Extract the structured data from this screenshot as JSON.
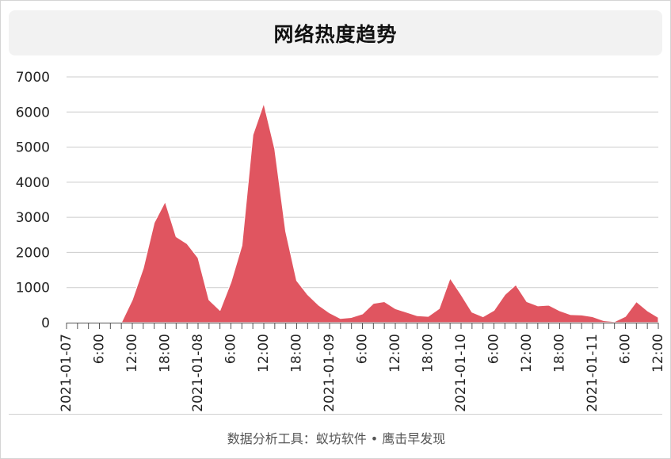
{
  "chart_data": {
    "type": "area",
    "title": "网络热度趋势",
    "x_tick_labels": [
      "2021-01-07",
      "6:00",
      "12:00",
      "18:00",
      "2021-01-08",
      "6:00",
      "12:00",
      "18:00",
      "2021-01-09",
      "6:00",
      "12:00",
      "18:00",
      "2021-01-10",
      "6:00",
      "12:00",
      "18:00",
      "2021-01-11",
      "6:00",
      "12:00"
    ],
    "y_tick_labels": [
      "0",
      "1000",
      "2000",
      "3000",
      "4000",
      "5000",
      "6000",
      "7000"
    ],
    "ylim": [
      0,
      7000
    ],
    "interval_hours": 2,
    "grid": true,
    "legend": "none",
    "series": [
      {
        "color": "#e05560",
        "values": [
          0,
          0,
          0,
          0,
          0,
          0,
          650,
          1550,
          2850,
          3450,
          2450,
          2250,
          1850,
          650,
          350,
          1150,
          2200,
          5350,
          6250,
          4950,
          2600,
          1200,
          800,
          500,
          280,
          120,
          150,
          250,
          550,
          600,
          400,
          300,
          200,
          180,
          400,
          1270,
          800,
          300,
          170,
          350,
          800,
          1080,
          600,
          480,
          500,
          340,
          230,
          220,
          170,
          60,
          30,
          180,
          600,
          340,
          150
        ]
      }
    ]
  },
  "footer": {
    "text": "数据分析工具：蚁坊软件 • 鹰击早发现"
  },
  "colors": {
    "area_fill": "#e05560",
    "grid_line": "#cccccc",
    "axis_text": "#222222"
  }
}
